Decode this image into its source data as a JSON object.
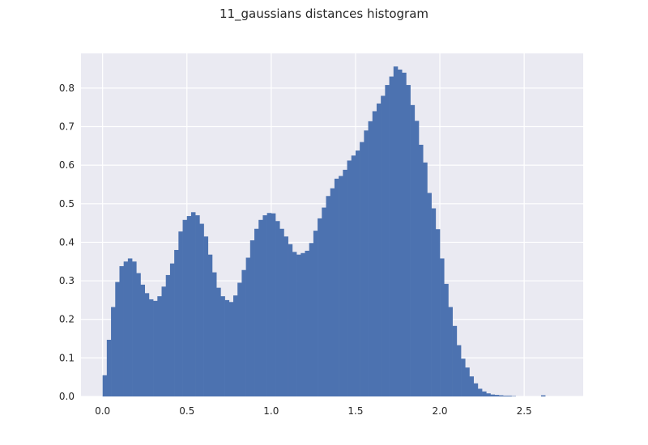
{
  "chart_data": {
    "type": "bar",
    "title": "11_gaussians distances histogram",
    "xlabel": "",
    "ylabel": "",
    "xlim": [
      -0.128,
      2.85
    ],
    "ylim": [
      0,
      0.89
    ],
    "xticks": [
      0.0,
      0.5,
      1.0,
      1.5,
      2.0,
      2.5
    ],
    "xtick_labels": [
      "0.0",
      "0.5",
      "1.0",
      "1.5",
      "2.0",
      "2.5"
    ],
    "yticks": [
      0.0,
      0.1,
      0.2,
      0.3,
      0.4,
      0.5,
      0.6,
      0.7,
      0.8
    ],
    "ytick_labels": [
      "0.0",
      "0.1",
      "0.2",
      "0.3",
      "0.4",
      "0.5",
      "0.6",
      "0.7",
      "0.8"
    ],
    "grid": true,
    "bin_start": 0.0,
    "bin_width": 0.025,
    "values": [
      0.055,
      0.147,
      0.232,
      0.297,
      0.338,
      0.35,
      0.358,
      0.35,
      0.32,
      0.29,
      0.268,
      0.252,
      0.248,
      0.26,
      0.285,
      0.315,
      0.345,
      0.38,
      0.428,
      0.458,
      0.468,
      0.478,
      0.47,
      0.448,
      0.415,
      0.368,
      0.322,
      0.282,
      0.26,
      0.25,
      0.245,
      0.262,
      0.295,
      0.328,
      0.36,
      0.405,
      0.435,
      0.458,
      0.47,
      0.476,
      0.475,
      0.455,
      0.435,
      0.415,
      0.395,
      0.375,
      0.368,
      0.372,
      0.378,
      0.398,
      0.43,
      0.462,
      0.49,
      0.52,
      0.54,
      0.565,
      0.572,
      0.588,
      0.612,
      0.625,
      0.638,
      0.66,
      0.69,
      0.714,
      0.74,
      0.76,
      0.78,
      0.808,
      0.83,
      0.856,
      0.848,
      0.84,
      0.808,
      0.756,
      0.715,
      0.653,
      0.607,
      0.528,
      0.488,
      0.434,
      0.358,
      0.292,
      0.232,
      0.183,
      0.133,
      0.098,
      0.075,
      0.052,
      0.034,
      0.02,
      0.013,
      0.008,
      0.005,
      0.004,
      0.003,
      0.002,
      0.002,
      0.001,
      0.0,
      0.0,
      0.0,
      0.0,
      0.0,
      0.0,
      0.003
    ],
    "colors": {
      "bar": "#4c72b0",
      "plot_bg": "#eaeaf2",
      "grid": "#ffffff"
    }
  }
}
